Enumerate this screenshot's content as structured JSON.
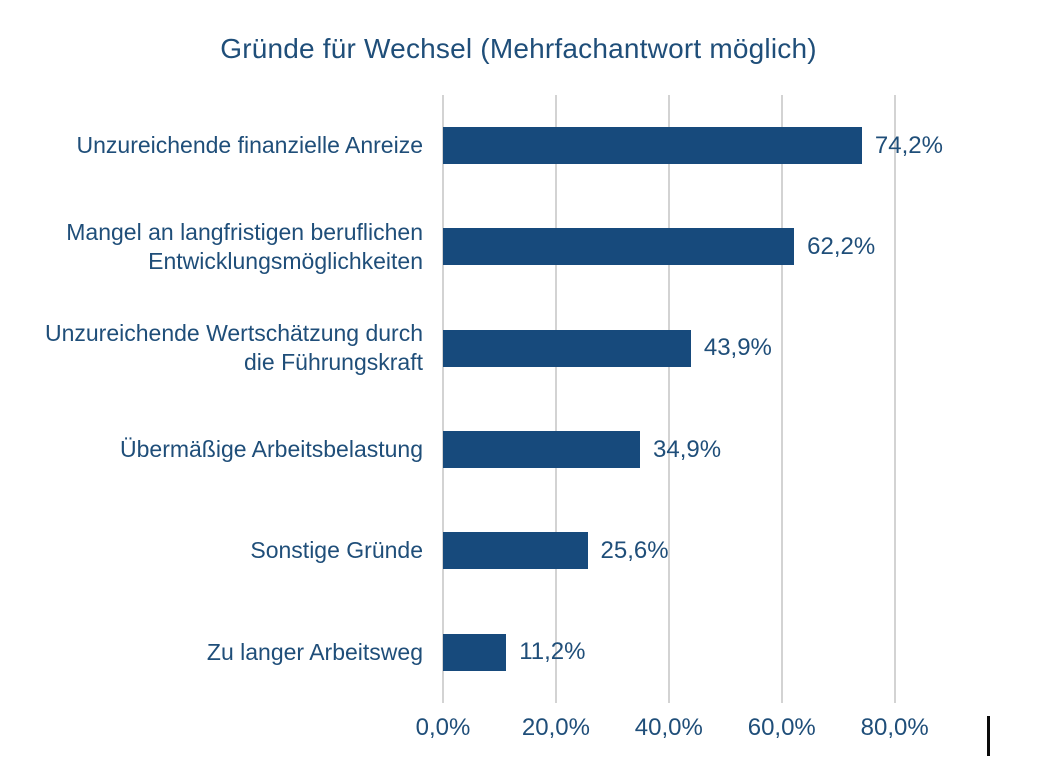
{
  "page": {
    "background_color": "#ffffff",
    "accent_color": "#1F4E79"
  },
  "chart_data": {
    "type": "bar",
    "orientation": "horizontal",
    "title": "Gründe für Wechsel (Mehrfachantwort möglich)",
    "categories": [
      "Unzureichende finanzielle Anreize",
      "Mangel an langfristigen beruflichen Entwicklungsmöglichkeiten",
      "Unzureichende Wertschätzung durch die Führungskraft",
      "Übermäßige Arbeitsbelastung",
      "Sonstige Gründe",
      "Zu langer Arbeitsweg"
    ],
    "values": [
      74.2,
      62.2,
      43.9,
      34.9,
      25.6,
      11.2
    ],
    "value_labels": [
      "74,2%",
      "62,2%",
      "43,9%",
      "34,9%",
      "25,6%",
      "11,2%"
    ],
    "x_ticks": [
      {
        "value": 0,
        "label": "0,0%"
      },
      {
        "value": 20,
        "label": "20,0%"
      },
      {
        "value": 40,
        "label": "40,0%"
      },
      {
        "value": 60,
        "label": "60,0%"
      },
      {
        "value": 80,
        "label": "80,0%"
      }
    ],
    "xlim": [
      0,
      96
    ],
    "xlabel": "",
    "ylabel": "",
    "legend": "none",
    "grid": "vertical-only",
    "bar_color": "#174A7C",
    "text_color": "#1F4E79",
    "gridline_color": "#D3D3D3"
  }
}
